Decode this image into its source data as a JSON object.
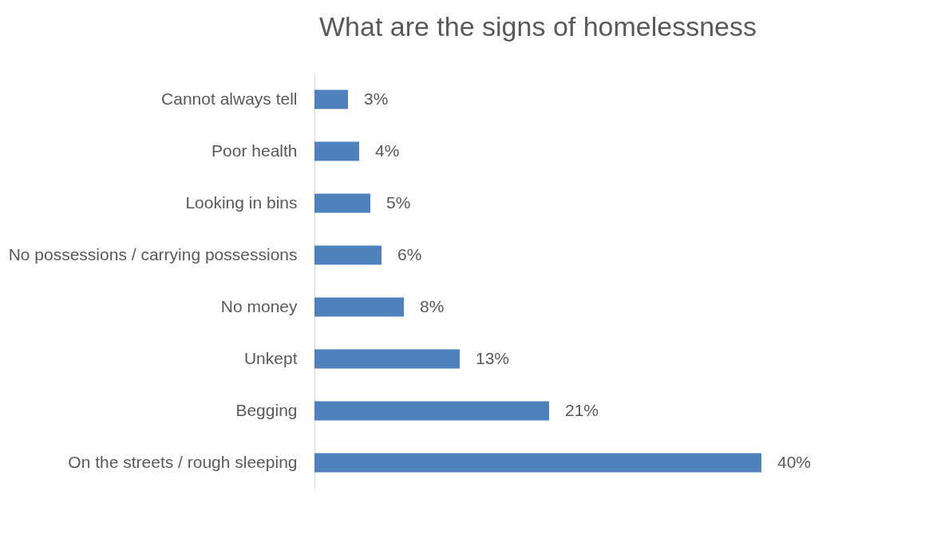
{
  "chart_data": {
    "type": "bar",
    "orientation": "horizontal",
    "title": "What are the signs of homelessness",
    "categories": [
      "Cannot always tell",
      "Poor health",
      "Looking in bins",
      "No possessions / carrying possessions",
      "No money",
      "Unkept",
      "Begging",
      "On the streets / rough sleeping"
    ],
    "values": [
      3,
      4,
      5,
      6,
      8,
      13,
      21,
      40
    ],
    "value_labels": [
      "3%",
      "4%",
      "5%",
      "6%",
      "8%",
      "13%",
      "21%",
      "40%"
    ],
    "color": "#4f81bd",
    "grid": false
  }
}
